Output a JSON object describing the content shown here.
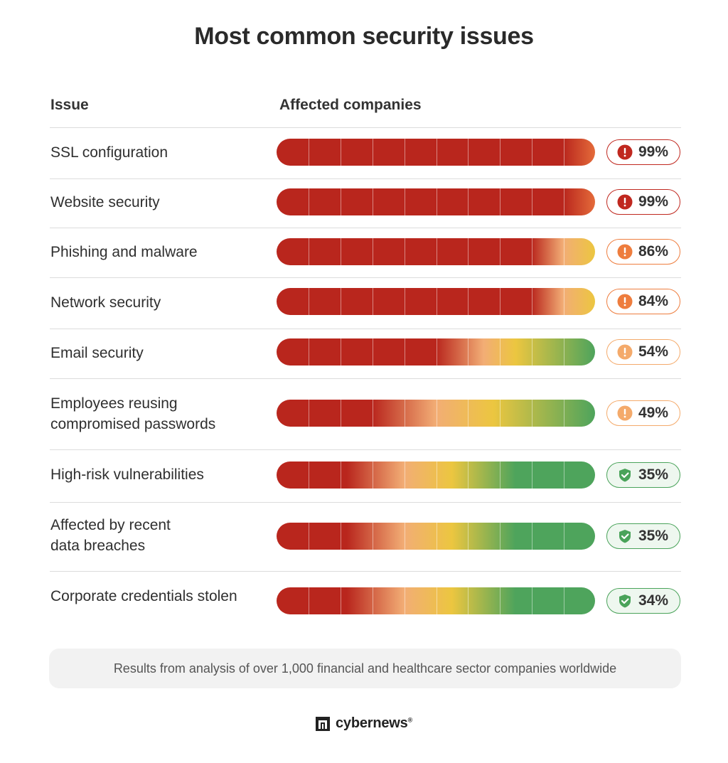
{
  "title": "Most common security issues",
  "headers": {
    "issue": "Issue",
    "affected": "Affected companies"
  },
  "footnote": "Results from analysis of over 1,000 financial and healthcare sector companies worldwide",
  "brand": {
    "name": "cybernews",
    "reg": "®"
  },
  "colors": {
    "red": "#b9261d",
    "orange": "#e46b3a",
    "light_orange": "#f2ad75",
    "yellow": "#ecc640",
    "green": "#4ea45c",
    "badge_red": "#c0281f",
    "badge_orange": "#ee7d3e",
    "badge_light_orange": "#f4aa6b",
    "badge_green": "#4aa35a"
  },
  "chart_data": {
    "type": "bar",
    "title": "Most common security issues",
    "xlabel": "Affected companies",
    "ylabel": "Issue",
    "xlim": [
      0,
      100
    ],
    "unit": "%",
    "categories": [
      "SSL configuration",
      "Website security",
      "Phishing and malware",
      "Network security",
      "Email security",
      "Employees reusing\ncompromised passwords",
      "High-risk vulnerabilities",
      "Affected by recent\ndata breaches",
      "Corporate credentials stolen"
    ],
    "values": [
      99,
      99,
      86,
      84,
      54,
      49,
      35,
      35,
      34
    ],
    "value_labels": [
      "99%",
      "99%",
      "86%",
      "84%",
      "54%",
      "49%",
      "35%",
      "35%",
      "34%"
    ],
    "severity_icons": [
      "alert-icon",
      "alert-icon",
      "alert-icon",
      "alert-icon",
      "alert-icon",
      "alert-icon",
      "shield-check-icon",
      "shield-check-icon",
      "shield-check-icon"
    ],
    "severity_levels": [
      "high",
      "high",
      "medium",
      "medium",
      "low",
      "low",
      "safe",
      "safe",
      "safe"
    ]
  }
}
